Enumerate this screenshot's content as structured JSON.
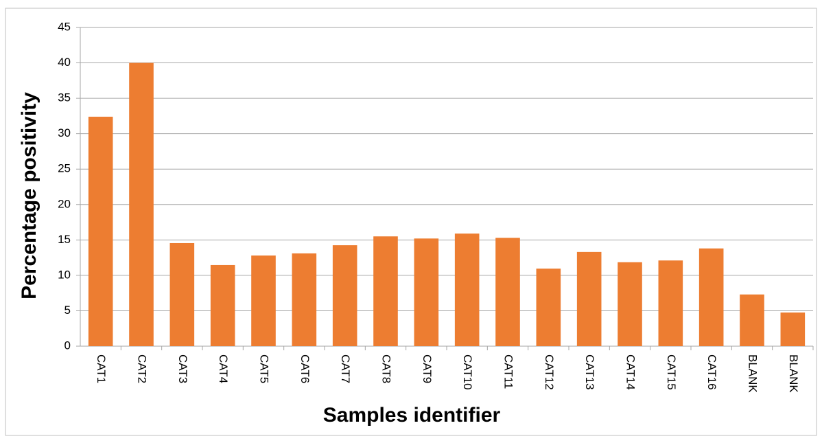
{
  "chart_data": {
    "type": "bar",
    "categories": [
      "CAT1",
      "CAT2",
      "CAT3",
      "CAT4",
      "CAT5",
      "CAT6",
      "CAT7",
      "CAT8",
      "CAT9",
      "CAT10",
      "CAT11",
      "CAT12",
      "CAT13",
      "CAT14",
      "CAT15",
      "CAT16",
      "BLANK",
      "BLANK"
    ],
    "values": [
      32.4,
      40,
      14.55,
      11.45,
      12.8,
      13.1,
      14.25,
      15.5,
      15.2,
      15.9,
      15.3,
      10.95,
      13.3,
      11.85,
      12.1,
      13.8,
      7.3,
      4.75
    ],
    "color": "#ed7d31",
    "x_label": "Samples identifier",
    "y_label": "Percentage positivity",
    "ylim": [
      0,
      45
    ],
    "yticks": [
      0,
      5,
      10,
      15,
      20,
      25,
      30,
      35,
      40,
      45
    ],
    "grid": true
  }
}
